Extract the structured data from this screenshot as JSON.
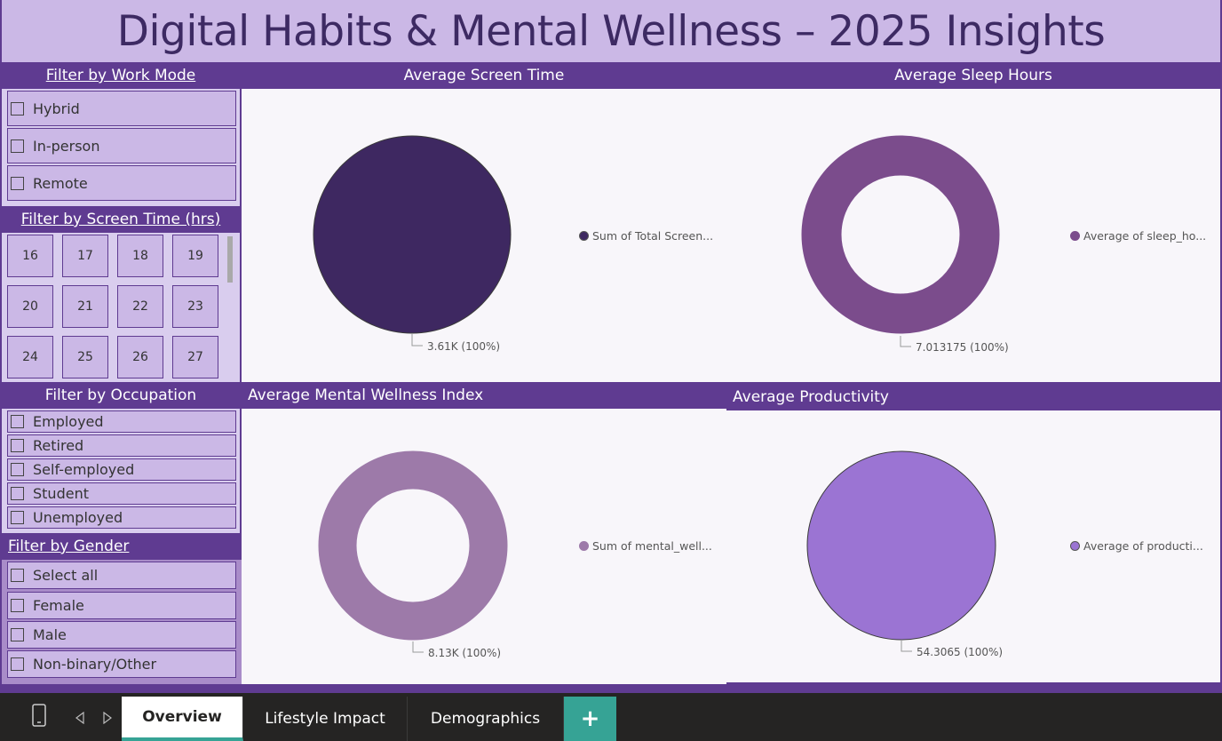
{
  "title": "Digital Habits & Mental Wellness – 2025 Insights",
  "colors": {
    "brand_purple": "#5f3b91",
    "title_bg": "#cbb8e6",
    "accent_teal": "#36a395"
  },
  "work_mode": {
    "header": "Filter by Work Mode",
    "options": [
      "Hybrid",
      "In-person",
      "Remote"
    ]
  },
  "screen_time": {
    "header": "Filter by Screen Time (hrs)",
    "tiles": [
      "16",
      "17",
      "18",
      "19",
      "20",
      "21",
      "22",
      "23",
      "24",
      "25",
      "26",
      "27"
    ]
  },
  "occupation": {
    "header": "Filter by Occupation",
    "options": [
      "Employed",
      "Retired",
      "Self-employed",
      "Student",
      "Unemployed"
    ]
  },
  "gender": {
    "header": "Filter by Gender",
    "options": [
      "Select all",
      "Female",
      "Male",
      "Non-binary/Other"
    ]
  },
  "charts": {
    "screen": {
      "title": "Average Screen Time",
      "legend": "Sum of Total Screen...",
      "label": "3.61K (100%)",
      "color": "#3e2861"
    },
    "sleep": {
      "title": "Average Sleep Hours",
      "legend": "Average of sleep_ho...",
      "label": "7.013175 (100%)",
      "color": "#7b4c8c"
    },
    "wellness": {
      "title": "Average Mental Wellness Index",
      "legend": "Sum of mental_well...",
      "label": "8.13K (100%)",
      "color": "#9d7aa9"
    },
    "productivity": {
      "title": "Average Productivity",
      "legend": "Average of producti...",
      "label": "54.3065 (100%)",
      "color": "#9b74d3"
    }
  },
  "chart_data": [
    {
      "type": "pie",
      "title": "Average Screen Time",
      "series": [
        {
          "name": "Sum of Total Screen...",
          "values": [
            3610
          ]
        }
      ],
      "data_labels": [
        "3.61K (100%)"
      ]
    },
    {
      "type": "pie",
      "title": "Average Sleep Hours",
      "series": [
        {
          "name": "Average of sleep_ho...",
          "values": [
            7.013175
          ]
        }
      ],
      "data_labels": [
        "7.013175 (100%)"
      ]
    },
    {
      "type": "pie",
      "title": "Average Mental Wellness Index",
      "series": [
        {
          "name": "Sum of mental_well...",
          "values": [
            8130
          ]
        }
      ],
      "data_labels": [
        "8.13K (100%)"
      ]
    },
    {
      "type": "pie",
      "title": "Average Productivity",
      "series": [
        {
          "name": "Average of producti...",
          "values": [
            54.3065
          ]
        }
      ],
      "data_labels": [
        "54.3065 (100%)"
      ]
    }
  ],
  "tabs": [
    "Overview",
    "Lifestyle Impact",
    "Demographics"
  ],
  "add_tab_label": "+",
  "icons": {
    "mobile": "mobile-phone-icon",
    "prev": "triangle-left-icon",
    "next": "triangle-right-icon"
  }
}
